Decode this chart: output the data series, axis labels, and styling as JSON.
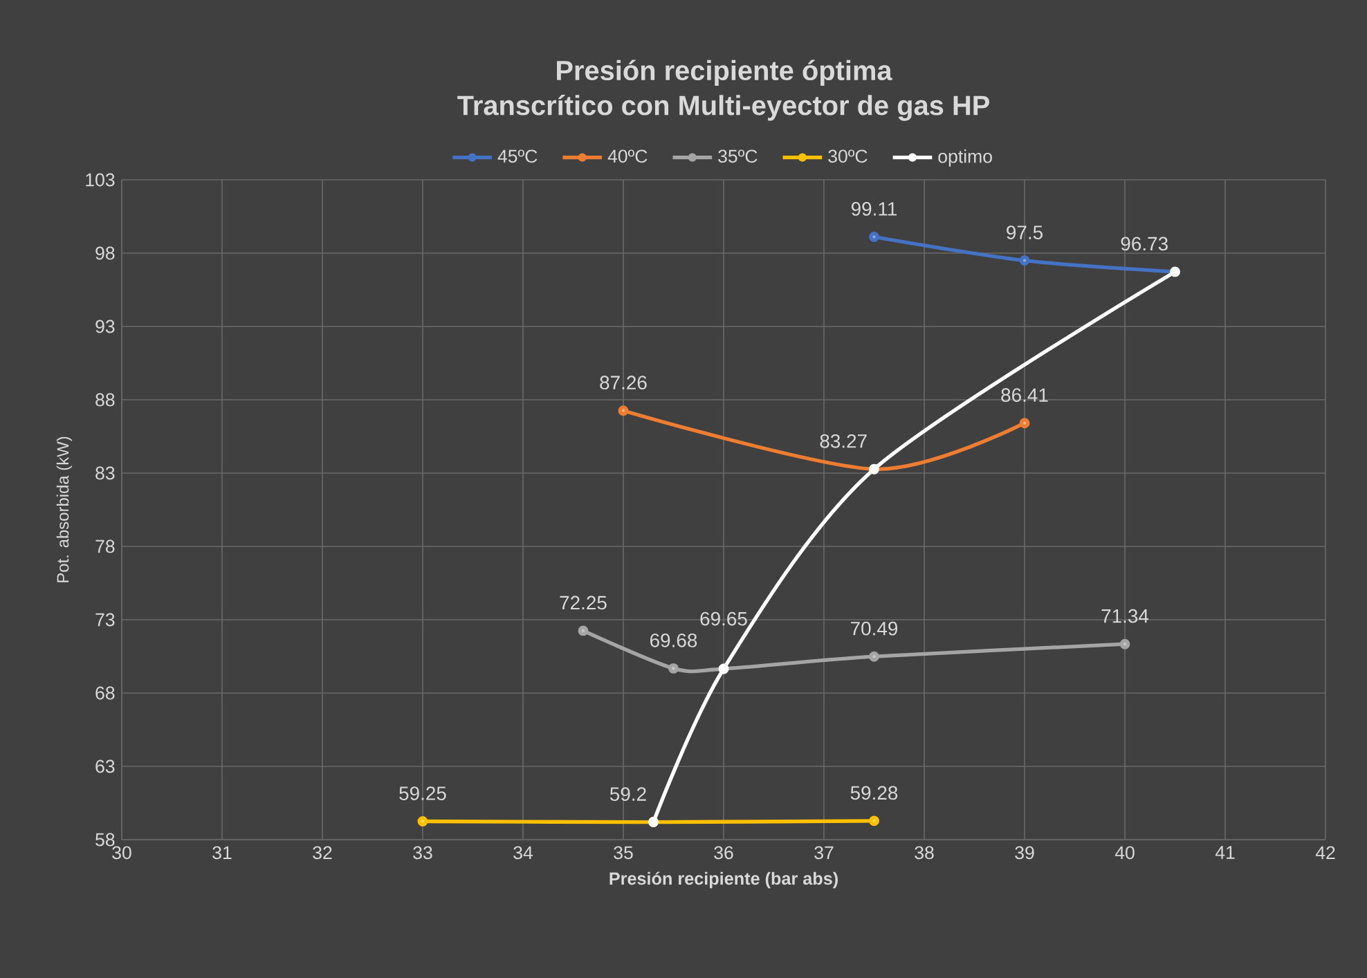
{
  "chart_data": {
    "type": "line",
    "title": "Presión recipiente óptima",
    "subtitle": "Transcrítico con Multi-eyector de gas HP",
    "xlabel": "Presión recipiente (bar abs)",
    "ylabel": "Pot. absorbida (kW)",
    "xlim": [
      30,
      42
    ],
    "xticks": [
      30,
      31,
      32,
      33,
      34,
      35,
      36,
      37,
      38,
      39,
      40,
      41,
      42
    ],
    "ylim": [
      58,
      103
    ],
    "yticks": [
      58,
      63,
      68,
      73,
      78,
      83,
      88,
      93,
      98,
      103
    ],
    "grid": true,
    "legend": "top",
    "marker": "circle",
    "line_style": "solid",
    "series": [
      {
        "name": "45ºC",
        "color": "#4472c4",
        "x": [
          37.5,
          39,
          40.5
        ],
        "values": [
          99.11,
          97.5,
          96.73
        ],
        "value_labels": [
          "99.11",
          "97.5",
          "96.73"
        ]
      },
      {
        "name": "40ºC",
        "color": "#ed7d31",
        "x": [
          35,
          37.5,
          39
        ],
        "values": [
          87.26,
          83.27,
          86.41
        ],
        "value_labels": [
          "87.26",
          "83.27",
          "86.41"
        ]
      },
      {
        "name": "35ºC",
        "color": "#a5a5a5",
        "x": [
          34.6,
          35.5,
          36,
          37.5,
          40
        ],
        "values": [
          72.25,
          69.68,
          69.65,
          70.49,
          71.34
        ],
        "value_labels": [
          "72.25",
          "69.68",
          "69.65",
          "70.49",
          "71.34"
        ]
      },
      {
        "name": "30ºC",
        "color": "#ffc000",
        "x": [
          33,
          35.3,
          37.5
        ],
        "values": [
          59.25,
          59.2,
          59.28
        ],
        "value_labels": [
          "59.25",
          "59.2",
          "59.28"
        ]
      },
      {
        "name": "optimo",
        "color": "#ffffff",
        "x": [
          35.3,
          36,
          37.5,
          40.5
        ],
        "values": [
          59.2,
          69.65,
          83.27,
          96.73
        ]
      }
    ]
  }
}
